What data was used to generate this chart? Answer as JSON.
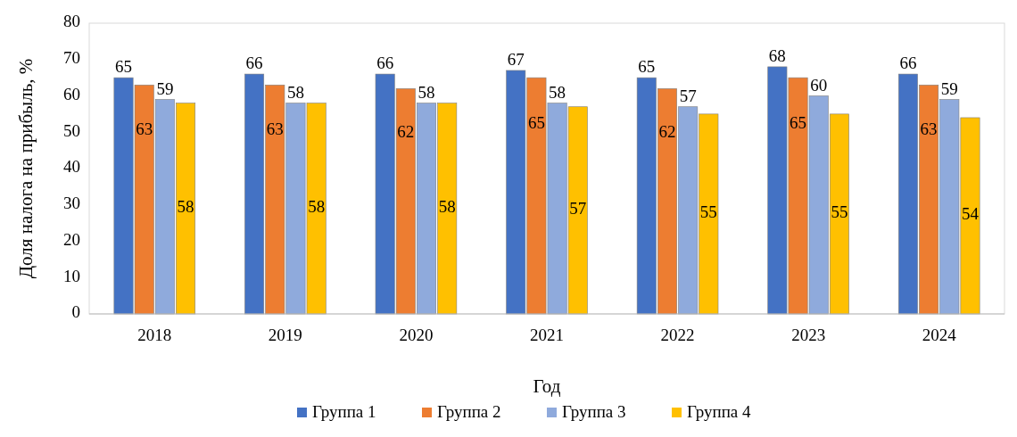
{
  "chart_data": {
    "type": "bar",
    "xlabel": "Год",
    "ylabel": "Доля налога на прибыль, %",
    "categories": [
      "2018",
      "2019",
      "2020",
      "2021",
      "2022",
      "2023",
      "2024"
    ],
    "series": [
      {
        "name": "Группа 1",
        "color": "#4472c4",
        "values": [
          65,
          66,
          66,
          67,
          65,
          68,
          66
        ]
      },
      {
        "name": "Группа 2",
        "color": "#ed7d31",
        "values": [
          63,
          63,
          62,
          65,
          62,
          65,
          63
        ]
      },
      {
        "name": "Группа 3",
        "color": "#8faadc",
        "values": [
          59,
          58,
          58,
          58,
          57,
          60,
          59
        ]
      },
      {
        "name": "Группа 4",
        "color": "#ffc000",
        "values": [
          58,
          58,
          58,
          57,
          55,
          55,
          54
        ]
      }
    ],
    "ylim": [
      0,
      80
    ],
    "yticks": [
      0,
      10,
      20,
      30,
      40,
      50,
      60,
      70,
      80
    ],
    "grid": false,
    "legend": "bottom",
    "data_labels": true
  }
}
